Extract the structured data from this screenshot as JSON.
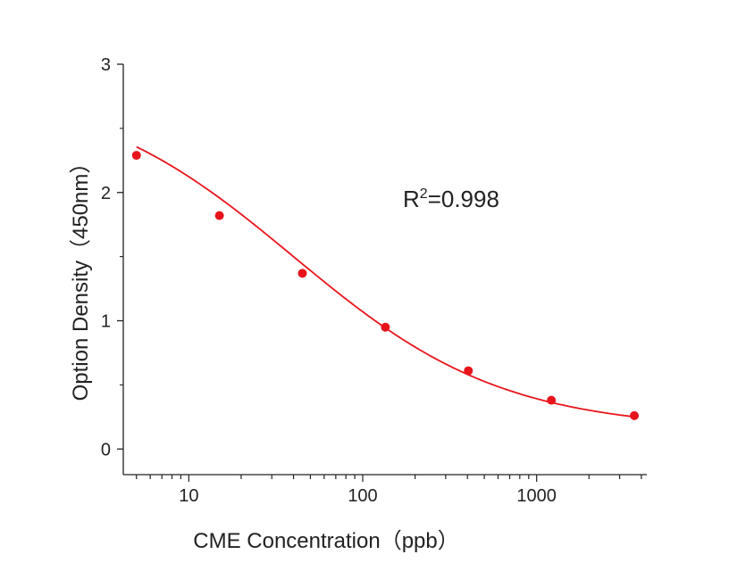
{
  "chart_data": {
    "type": "scatter",
    "x_scale": "log",
    "xlabel": "CME Concentration（ppb）",
    "ylabel": "Option Density（450nm）",
    "x_tick_labels": [
      "10",
      "100",
      "1000"
    ],
    "y_tick_labels": [
      "0",
      "1",
      "2",
      "3"
    ],
    "y_ticks": [
      0,
      1,
      2,
      3
    ],
    "xlim": [
      4.2,
      4300
    ],
    "ylim": [
      -0.2,
      3
    ],
    "grid": false,
    "annotation": {
      "base": "R",
      "sup": "2",
      "text": "=0.998"
    },
    "series": [
      {
        "color": "#e8141c",
        "points": [
          {
            "x": 5,
            "y": 2.29
          },
          {
            "x": 15,
            "y": 1.82
          },
          {
            "x": 45,
            "y": 1.37
          },
          {
            "x": 135,
            "y": 0.95
          },
          {
            "x": 405,
            "y": 0.61
          },
          {
            "x": 1215,
            "y": 0.38
          },
          {
            "x": 3645,
            "y": 0.26
          }
        ]
      }
    ],
    "fit_curve": {
      "model": "4PL",
      "color": "#e8141c",
      "A": 2.85,
      "D": 0.15,
      "C": 40,
      "B": 0.72
    }
  }
}
